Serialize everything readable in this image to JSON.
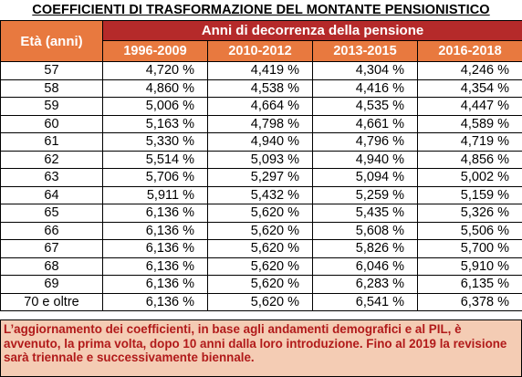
{
  "title": "COEFFICIENTI DI TRASFORMAZIONE DEL MONTANTE PENSIONISTICO",
  "table": {
    "age_header": "Età (anni)",
    "group_header": "Anni di decorrenza della pensione",
    "periods": [
      "1996-2009",
      "2010-2012",
      "2013-2015",
      "2016-2018"
    ],
    "rows": [
      {
        "age": "57",
        "values": [
          "4,720 %",
          "4,419 %",
          "4,304 %",
          "4,246 %"
        ]
      },
      {
        "age": "58",
        "values": [
          "4,860 %",
          "4,538 %",
          "4,416 %",
          "4,354 %"
        ]
      },
      {
        "age": "59",
        "values": [
          "5,006 %",
          "4,664 %",
          "4,535 %",
          "4,447 %"
        ]
      },
      {
        "age": "60",
        "values": [
          "5,163 %",
          "4,798 %",
          "4,661 %",
          "4,589 %"
        ]
      },
      {
        "age": "61",
        "values": [
          "5,330 %",
          "4,940 %",
          "4,796 %",
          "4,719 %"
        ]
      },
      {
        "age": "62",
        "values": [
          "5,514 %",
          "5,093 %",
          "4,940 %",
          "4,856 %"
        ]
      },
      {
        "age": "63",
        "values": [
          "5,706 %",
          "5,297 %",
          "5,094 %",
          "5,002 %"
        ]
      },
      {
        "age": "64",
        "values": [
          "5,911 %",
          "5,432 %",
          "5,259 %",
          "5,159 %"
        ]
      },
      {
        "age": "65",
        "values": [
          "6,136 %",
          "5,620 %",
          "5,435 %",
          "5,326  %"
        ]
      },
      {
        "age": "66",
        "values": [
          "6,136 %",
          "5,620 %",
          "5,608 %",
          "5,506 %"
        ]
      },
      {
        "age": "67",
        "values": [
          "6,136 %",
          "5,620 %",
          "5,826 %",
          "5,700 %"
        ]
      },
      {
        "age": "68",
        "values": [
          "6,136 %",
          "5,620 %",
          "6,046 %",
          "5,910 %"
        ]
      },
      {
        "age": "69",
        "values": [
          "6,136 %",
          "5,620 %",
          "6,283 %",
          "6,135 %"
        ]
      },
      {
        "age": "70 e oltre",
        "values": [
          "6,136 %",
          "5,620 %",
          "6,541 %",
          "6,378 %"
        ]
      }
    ]
  },
  "note": "L’aggiornamento dei coefficienti, in base agli andamenti demografici e al PIL, è avvenuto, la prima volta, dopo 10 anni dalla loro introduzione. Fino al 2019 la revisione sarà triennale e successivamente biennale.",
  "colors": {
    "header_orange": "#e8793f",
    "header_red": "#b52a2a",
    "note_background": "#f4ccb4",
    "note_text": "#b11a1a"
  }
}
